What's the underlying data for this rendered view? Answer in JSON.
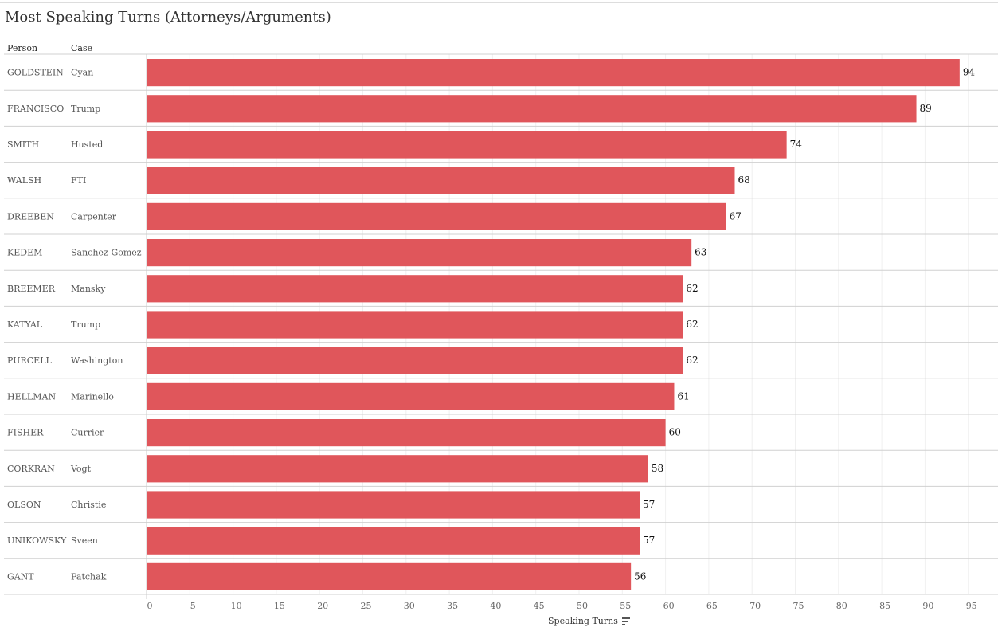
{
  "title": "Most Speaking Turns (Attorneys/Arguments)",
  "headers": {
    "person": "Person",
    "case": "Case"
  },
  "chart_data": {
    "type": "bar",
    "orientation": "horizontal",
    "title": "Most Speaking Turns (Attorneys/Arguments)",
    "xlabel": "Speaking Turns",
    "xlim": [
      0,
      98
    ],
    "xticks": [
      0,
      5,
      10,
      15,
      20,
      25,
      30,
      35,
      40,
      45,
      50,
      55,
      60,
      65,
      70,
      75,
      80,
      85,
      90,
      95
    ],
    "bar_color": "#e0565b",
    "rows": [
      {
        "person": "GOLDSTEIN",
        "case": "Cyan",
        "value": 94
      },
      {
        "person": "FRANCISCO",
        "case": "Trump",
        "value": 89
      },
      {
        "person": "SMITH",
        "case": "Husted",
        "value": 74
      },
      {
        "person": "WALSH",
        "case": "FTI",
        "value": 68
      },
      {
        "person": "DREEBEN",
        "case": "Carpenter",
        "value": 67
      },
      {
        "person": "KEDEM",
        "case": "Sanchez-Gomez",
        "value": 63
      },
      {
        "person": "BREEMER",
        "case": "Mansky",
        "value": 62
      },
      {
        "person": "KATYAL",
        "case": "Trump",
        "value": 62
      },
      {
        "person": "PURCELL",
        "case": "Washington",
        "value": 62
      },
      {
        "person": "HELLMAN",
        "case": "Marinello",
        "value": 61
      },
      {
        "person": "FISHER",
        "case": "Currier",
        "value": 60
      },
      {
        "person": "CORKRAN",
        "case": "Vogt",
        "value": 58
      },
      {
        "person": "OLSON",
        "case": "Christie",
        "value": 57
      },
      {
        "person": "UNIKOWSKY",
        "case": "Sveen",
        "value": 57
      },
      {
        "person": "GANT",
        "case": "Patchak",
        "value": 56
      }
    ]
  }
}
